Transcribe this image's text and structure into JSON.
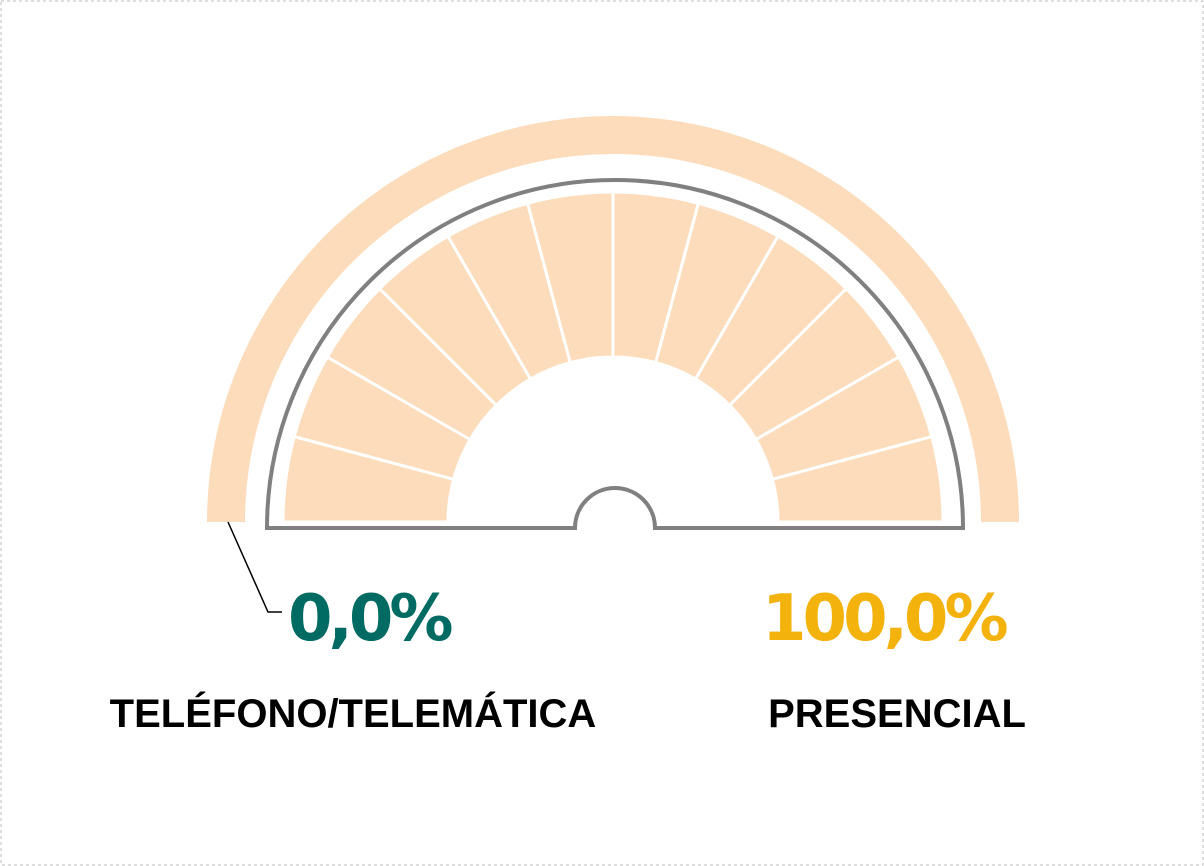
{
  "chart_data": {
    "type": "gauge",
    "categories": [
      "TELÉFONO/TELEMÁTICA",
      "PRESENCIAL"
    ],
    "values": [
      0,
      100
    ],
    "value_labels": [
      "0,0%",
      "100,0%"
    ],
    "colors": [
      "#006b62",
      "#f4b20d"
    ],
    "band_color": "#fddcbc"
  }
}
